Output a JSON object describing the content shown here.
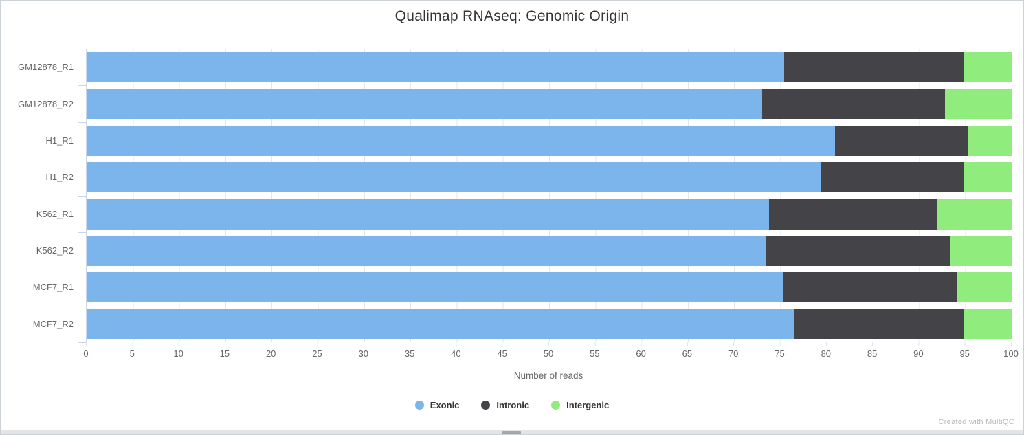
{
  "title": "Qualimap RNAseq: Genomic Origin",
  "xaxis": {
    "title": "Number of reads",
    "ticks": [
      "0",
      "5",
      "10",
      "15",
      "20",
      "25",
      "30",
      "35",
      "40",
      "45",
      "50",
      "55",
      "60",
      "65",
      "70",
      "75",
      "80",
      "85",
      "90",
      "95",
      "100"
    ]
  },
  "legend": {
    "items": [
      {
        "label": "Exonic",
        "color": "#7cb5ec"
      },
      {
        "label": "Intronic",
        "color": "#434348"
      },
      {
        "label": "Intergenic",
        "color": "#90ed7d"
      }
    ]
  },
  "watermark": "Created with MultiQC",
  "chart_data": {
    "type": "bar",
    "orientation": "horizontal",
    "stacked": true,
    "title": "Qualimap RNAseq: Genomic Origin",
    "xlabel": "Number of reads",
    "ylabel": "",
    "xlim": [
      0,
      100
    ],
    "grid": true,
    "legend_position": "bottom",
    "categories": [
      "GM12878_R1",
      "GM12878_R2",
      "H1_R1",
      "H1_R2",
      "K562_R1",
      "K562_R2",
      "MCF7_R1",
      "MCF7_R2"
    ],
    "series": [
      {
        "name": "Exonic",
        "color": "#7cb5ec",
        "values": [
          75.4,
          73.0,
          80.9,
          79.4,
          73.8,
          73.5,
          75.3,
          76.5
        ]
      },
      {
        "name": "Intronic",
        "color": "#434348",
        "values": [
          19.5,
          19.8,
          14.4,
          15.4,
          18.2,
          19.9,
          18.8,
          18.4
        ]
      },
      {
        "name": "Intergenic",
        "color": "#90ed7d",
        "values": [
          5.1,
          7.2,
          4.7,
          5.2,
          8.0,
          6.6,
          5.9,
          5.1
        ]
      }
    ]
  }
}
